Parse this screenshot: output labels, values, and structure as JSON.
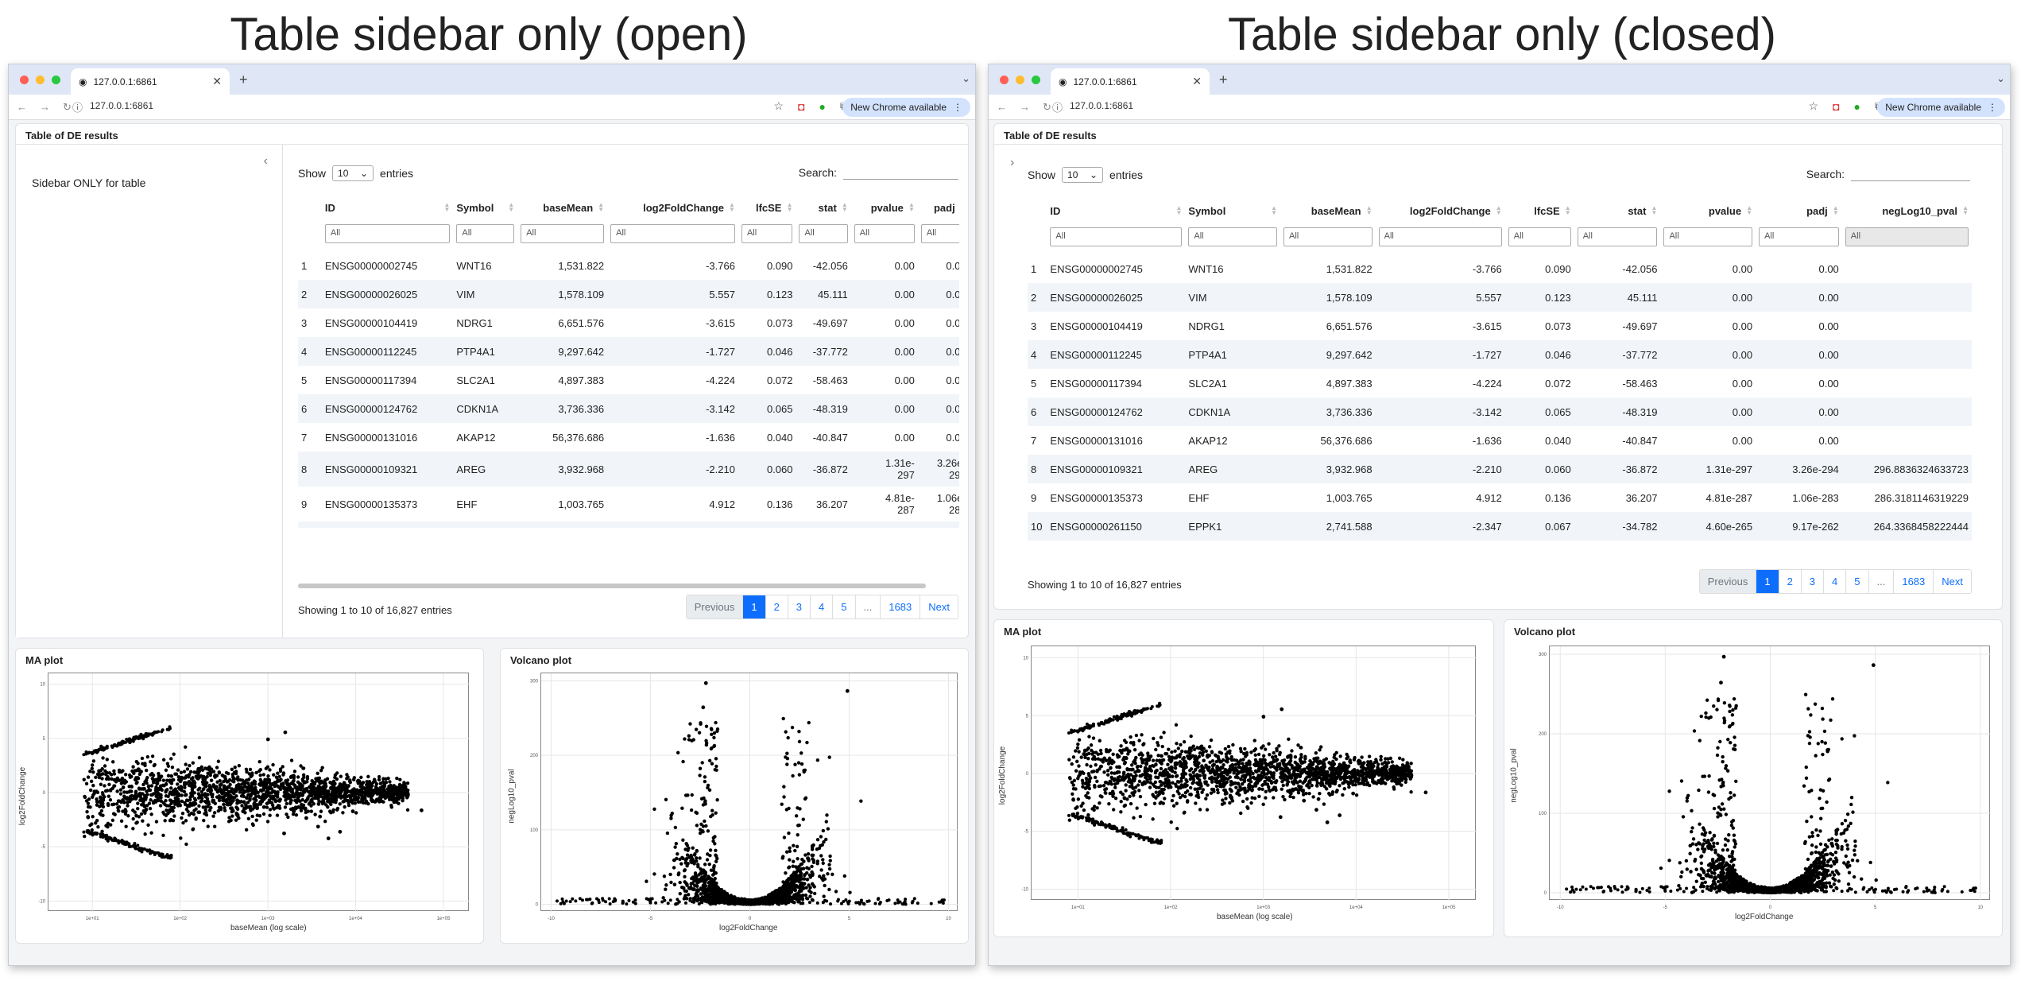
{
  "titles": {
    "open": "Table sidebar only (open)",
    "closed": "Table sidebar only (closed)"
  },
  "browser": {
    "tab_title": "127.0.0.1:6861",
    "url": "127.0.0.1:6861",
    "chrome_button": "New Chrome available",
    "dot_colors": [
      "#ff5f57",
      "#febc2e",
      "#28c840"
    ]
  },
  "panel": {
    "title": "Table of DE results",
    "sidebar_text": "Sidebar ONLY for table",
    "show": "Show",
    "entries": "entries",
    "page_size": "10",
    "search_label": "Search:"
  },
  "table": {
    "columns": [
      "ID",
      "Symbol",
      "baseMean",
      "log2FoldChange",
      "lfcSE",
      "stat",
      "pvalue",
      "padj",
      "negLog10_pval"
    ],
    "filter_placeholder": "All",
    "rows": [
      [
        "1",
        "ENSG00000002745",
        "WNT16",
        "1,531.822",
        "-3.766",
        "0.090",
        "-42.056",
        "0.00",
        "0.00",
        ""
      ],
      [
        "2",
        "ENSG00000026025",
        "VIM",
        "1,578.109",
        "5.557",
        "0.123",
        "45.111",
        "0.00",
        "0.00",
        ""
      ],
      [
        "3",
        "ENSG00000104419",
        "NDRG1",
        "6,651.576",
        "-3.615",
        "0.073",
        "-49.697",
        "0.00",
        "0.00",
        ""
      ],
      [
        "4",
        "ENSG00000112245",
        "PTP4A1",
        "9,297.642",
        "-1.727",
        "0.046",
        "-37.772",
        "0.00",
        "0.00",
        ""
      ],
      [
        "5",
        "ENSG00000117394",
        "SLC2A1",
        "4,897.383",
        "-4.224",
        "0.072",
        "-58.463",
        "0.00",
        "0.00",
        ""
      ],
      [
        "6",
        "ENSG00000124762",
        "CDKN1A",
        "3,736.336",
        "-3.142",
        "0.065",
        "-48.319",
        "0.00",
        "0.00",
        ""
      ],
      [
        "7",
        "ENSG00000131016",
        "AKAP12",
        "56,376.686",
        "-1.636",
        "0.040",
        "-40.847",
        "0.00",
        "0.00",
        ""
      ],
      [
        "8",
        "ENSG00000109321",
        "AREG",
        "3,932.968",
        "-2.210",
        "0.060",
        "-36.872",
        "1.31e-297",
        "3.26e-294",
        "296.8836324633723"
      ],
      [
        "9",
        "ENSG00000135373",
        "EHF",
        "1,003.765",
        "4.912",
        "0.136",
        "36.207",
        "4.81e-287",
        "1.06e-283",
        "286.3181146319229"
      ],
      [
        "10",
        "ENSG00000261150",
        "EPPK1",
        "2,741.588",
        "-2.347",
        "0.067",
        "-34.782",
        "4.60e-265",
        "9.17e-262",
        "264.3368458222444"
      ]
    ],
    "info": "Showing 1 to 10 of 16,827 entries",
    "pager": [
      "Previous",
      "1",
      "2",
      "3",
      "4",
      "5",
      "...",
      "1683",
      "Next"
    ]
  },
  "open_view": {
    "pvalue_cells": [
      [
        "1.31e-",
        "297"
      ],
      [
        "4.81e-",
        "287"
      ],
      [
        "4.60e-",
        "265"
      ]
    ],
    "padj_cells": [
      [
        "3.26e-",
        "294"
      ],
      [
        "1.06e-",
        "283"
      ],
      [
        "9.17e-",
        "262"
      ]
    ],
    "neglog_cells": [
      "296.88363246",
      "286.31811463",
      "264.33684582"
    ]
  },
  "plots": {
    "ma": {
      "title": "MA plot",
      "xlabel": "baseMean (log scale)",
      "ylabel": "log2FoldChange"
    },
    "volcano": {
      "title": "Volcano plot",
      "xlabel": "log2FoldChange",
      "ylabel": "negLog10_pval"
    }
  },
  "chart_data": [
    {
      "type": "scatter",
      "title": "MA plot",
      "xlabel": "baseMean (log scale)",
      "ylabel": "log2FoldChange",
      "x_scale": "log",
      "x_ticks": [
        "1e+01",
        "1e+02",
        "1e+03",
        "1e+04",
        "1e+05"
      ],
      "y_ticks": [
        "10",
        "5",
        "0",
        "-5",
        "-10"
      ],
      "grid": true,
      "highlighted_points": [
        {
          "x": 1531.822,
          "y": -3.766
        },
        {
          "x": 1578.109,
          "y": 5.557
        },
        {
          "x": 6651.576,
          "y": -3.615
        },
        {
          "x": 9297.642,
          "y": -1.727
        },
        {
          "x": 4897.383,
          "y": -4.224
        },
        {
          "x": 3736.336,
          "y": -3.142
        },
        {
          "x": 56376.686,
          "y": -1.636
        },
        {
          "x": 3932.968,
          "y": -2.21
        },
        {
          "x": 1003.765,
          "y": 4.912
        },
        {
          "x": 2741.588,
          "y": -2.347
        }
      ]
    },
    {
      "type": "scatter",
      "title": "Volcano plot",
      "xlabel": "log2FoldChange",
      "ylabel": "negLog10_pval",
      "x_ticks": [
        "-10",
        "-5",
        "0",
        "5",
        "10"
      ],
      "y_ticks": [
        "300",
        "200",
        "100",
        "0"
      ],
      "grid": true,
      "highlighted_points": [
        {
          "x": -2.21,
          "y": 296.88
        },
        {
          "x": 4.912,
          "y": 286.32
        },
        {
          "x": -2.347,
          "y": 264.34
        }
      ]
    }
  ]
}
